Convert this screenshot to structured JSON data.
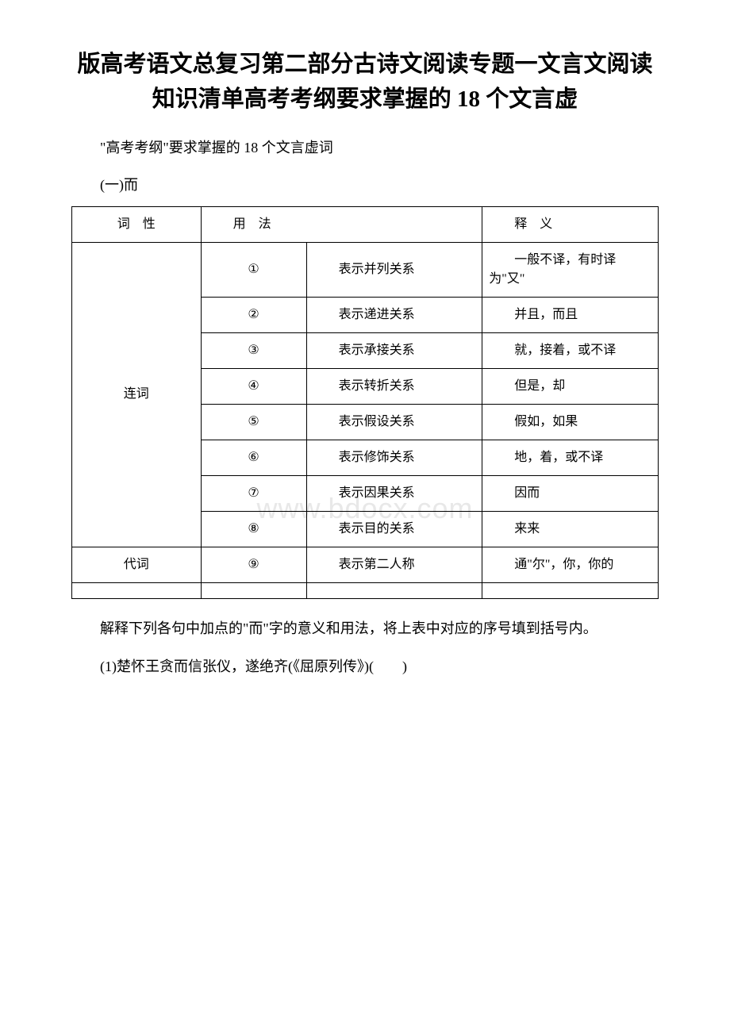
{
  "title": "版高考语文总复习第二部分古诗文阅读专题一文言文阅读知识清单高考考纲要求掌握的 18 个文言虚",
  "intro": "\"高考考纲\"要求掌握的 18 个文言虚词",
  "section_label": "(一)而",
  "watermark": "www.bdocx.com",
  "table": {
    "headers": {
      "pos": "词　性",
      "usage": "用　法",
      "meaning": "释　义"
    },
    "groups": [
      {
        "pos": "连词",
        "rows": [
          {
            "num": "①",
            "usage": "表示并列关系",
            "meaning": "一般不译，有时译为\"又\""
          },
          {
            "num": "②",
            "usage": "表示递进关系",
            "meaning": "并且，而且"
          },
          {
            "num": "③",
            "usage": "表示承接关系",
            "meaning": "就，接着，或不译"
          },
          {
            "num": "④",
            "usage": "表示转折关系",
            "meaning": "但是，却"
          },
          {
            "num": "⑤",
            "usage": "表示假设关系",
            "meaning": "假如，如果"
          },
          {
            "num": "⑥",
            "usage": "表示修饰关系",
            "meaning": "地，着，或不译"
          },
          {
            "num": "⑦",
            "usage": "表示因果关系",
            "meaning": "因而"
          },
          {
            "num": "⑧",
            "usage": "表示目的关系",
            "meaning": "来来"
          }
        ]
      },
      {
        "pos": "代词",
        "rows": [
          {
            "num": "⑨",
            "usage": "表示第二人称",
            "meaning": "通\"尔\"，你，你的"
          }
        ]
      }
    ]
  },
  "instruction": "解释下列各句中加点的\"而\"字的意义和用法，将上表中对应的序号填到括号内。",
  "example": "(1)楚怀王贪而信张仪，遂绝齐(《屈原列传》)(　　)"
}
